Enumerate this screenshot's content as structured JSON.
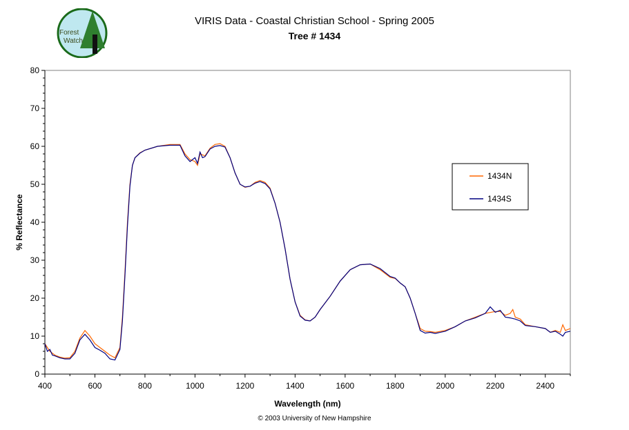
{
  "chart_data": {
    "type": "line",
    "title": "VIRIS Data - Coastal Christian School - Spring 2005",
    "subtitle": "Tree # 1434",
    "xlabel": "Wavelength (nm)",
    "ylabel": "% Reflectance",
    "xlim": [
      400,
      2500
    ],
    "ylim": [
      0,
      80
    ],
    "xticks": [
      400,
      600,
      800,
      1000,
      1200,
      1400,
      1600,
      1800,
      2000,
      2200,
      2400
    ],
    "yticks": [
      0,
      10,
      20,
      30,
      40,
      50,
      60,
      70,
      80
    ],
    "grid": false,
    "legend_placement": "right",
    "series": [
      {
        "name": "1434N",
        "color": "#ff6600",
        "x": [
          400,
          420,
          440,
          460,
          480,
          500,
          520,
          540,
          560,
          580,
          600,
          620,
          640,
          660,
          680,
          700,
          710,
          720,
          730,
          740,
          750,
          760,
          780,
          800,
          850,
          900,
          940,
          960,
          980,
          1000,
          1010,
          1020,
          1040,
          1060,
          1080,
          1100,
          1120,
          1140,
          1160,
          1180,
          1200,
          1220,
          1240,
          1260,
          1280,
          1300,
          1320,
          1340,
          1360,
          1380,
          1400,
          1420,
          1440,
          1460,
          1480,
          1500,
          1540,
          1580,
          1620,
          1660,
          1700,
          1740,
          1780,
          1800,
          1820,
          1840,
          1860,
          1880,
          1900,
          1920,
          1940,
          1960,
          2000,
          2040,
          2080,
          2120,
          2160,
          2200,
          2220,
          2240,
          2260,
          2270,
          2280,
          2300,
          2320,
          2360,
          2400,
          2420,
          2440,
          2460,
          2470,
          2480,
          2500
        ],
        "y": [
          8,
          6,
          5,
          4.5,
          4.2,
          4.3,
          6,
          9.5,
          11.5,
          10,
          8,
          7,
          6,
          5,
          4.3,
          7,
          15,
          27,
          40,
          50,
          55,
          57,
          58.3,
          59,
          60,
          60.5,
          60.5,
          58,
          56.5,
          56,
          55,
          58,
          57.5,
          59.5,
          60.5,
          60.7,
          60,
          57,
          53,
          50,
          49.2,
          49.5,
          50.5,
          51,
          50.5,
          49,
          45,
          40,
          33,
          25,
          19,
          15.5,
          14.3,
          14,
          15,
          17,
          20.5,
          24.5,
          27.5,
          28.8,
          29,
          27.5,
          25.5,
          25.2,
          24,
          23,
          20,
          16,
          12,
          11.3,
          11.2,
          11,
          11.5,
          12.5,
          14,
          15,
          16,
          16.5,
          16.5,
          15.5,
          16,
          17,
          15,
          14.5,
          13,
          12.5,
          12,
          11,
          11.5,
          11,
          13,
          11.5,
          12
        ]
      },
      {
        "name": "1434S",
        "color": "#000080",
        "x": [
          400,
          410,
          420,
          430,
          440,
          460,
          480,
          500,
          520,
          540,
          560,
          580,
          600,
          620,
          640,
          660,
          680,
          700,
          710,
          720,
          730,
          740,
          750,
          760,
          780,
          800,
          850,
          900,
          940,
          960,
          980,
          1000,
          1010,
          1020,
          1030,
          1040,
          1060,
          1080,
          1100,
          1120,
          1140,
          1160,
          1180,
          1200,
          1220,
          1240,
          1260,
          1280,
          1300,
          1320,
          1340,
          1360,
          1380,
          1400,
          1420,
          1440,
          1460,
          1480,
          1500,
          1540,
          1580,
          1620,
          1660,
          1700,
          1740,
          1780,
          1800,
          1820,
          1840,
          1860,
          1880,
          1900,
          1920,
          1940,
          1960,
          2000,
          2040,
          2080,
          2120,
          2160,
          2180,
          2200,
          2220,
          2240,
          2260,
          2280,
          2300,
          2320,
          2360,
          2400,
          2420,
          2440,
          2460,
          2470,
          2480,
          2500
        ],
        "y": [
          8,
          6,
          6.5,
          5,
          4.8,
          4.3,
          4,
          4,
          5.5,
          9,
          10.5,
          9,
          7,
          6.3,
          5.5,
          4,
          3.7,
          6.5,
          14,
          26,
          39,
          49.5,
          55,
          57,
          58.2,
          59,
          60,
          60.3,
          60.3,
          57.5,
          56,
          57,
          55.5,
          58.5,
          57,
          57.3,
          59.3,
          60,
          60.2,
          59.8,
          57,
          53,
          50,
          49.3,
          49.5,
          50.3,
          50.7,
          50.2,
          48.8,
          45,
          40,
          33,
          25,
          19,
          15.3,
          14.2,
          14,
          15,
          17,
          20.5,
          24.5,
          27.5,
          28.8,
          29,
          27.8,
          25.7,
          25.3,
          24,
          23,
          20,
          16,
          11.5,
          10.8,
          11,
          10.7,
          11.3,
          12.5,
          14,
          14.8,
          16,
          17.7,
          16.3,
          16.8,
          15,
          14.8,
          14.5,
          14,
          12.8,
          12.5,
          12,
          11,
          11.3,
          10.5,
          10,
          11,
          11.3
        ]
      }
    ]
  },
  "logo": {
    "text": "Forest Watch"
  },
  "footer": "© 2003 University of New Hampshire"
}
